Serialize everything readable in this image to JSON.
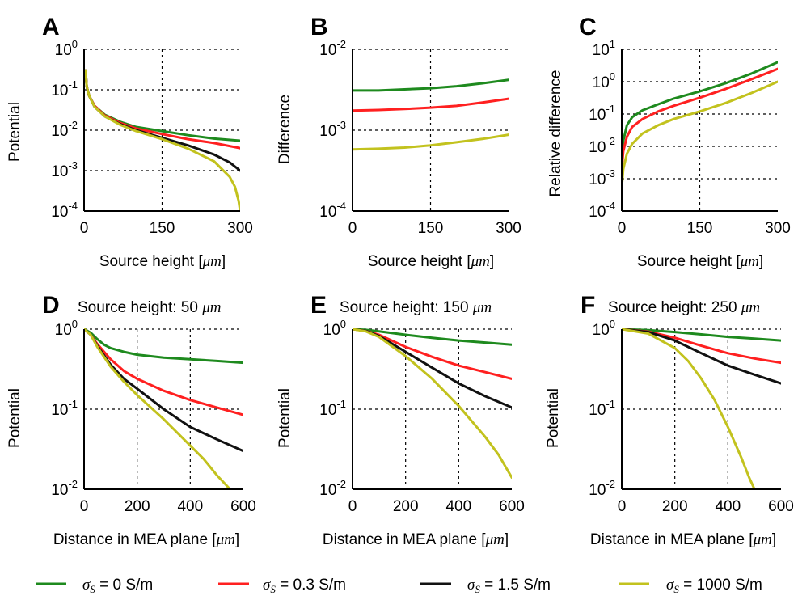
{
  "colors": {
    "green": "#1e8a1e",
    "red": "#ff2020",
    "black": "#111111",
    "yellow": "#c2c21e"
  },
  "legend": [
    {
      "symbol": "σ",
      "subscript": "S",
      "text": " = 0 S/m",
      "color": "#1e8a1e"
    },
    {
      "symbol": "σ",
      "subscript": "S",
      "text": " = 0.3 S/m",
      "color": "#ff2020"
    },
    {
      "symbol": "σ",
      "subscript": "S",
      "text": " = 1.5 S/m",
      "color": "#111111"
    },
    {
      "symbol": "σ",
      "subscript": "S",
      "text": " = 1000 S/m",
      "color": "#c2c21e"
    }
  ],
  "chart_data": [
    {
      "panel": "A",
      "type": "line",
      "log_y": true,
      "grid": true,
      "title": "",
      "ylabel": "Potential",
      "xlabel": "Source height [",
      "xlabel_unit": "μm",
      "xlabel_end": "]",
      "xlim": [
        0,
        300
      ],
      "ylim_exp": [
        -4,
        0
      ],
      "xticks": [
        0,
        150,
        300
      ],
      "xtick_labels": [
        "0",
        "150",
        "300"
      ],
      "yticks_exp": [
        -4,
        -3,
        -2,
        -1,
        0
      ],
      "series": [
        {
          "color": "green",
          "x": [
            3,
            5,
            10,
            20,
            40,
            70,
            100,
            150,
            200,
            250,
            300
          ],
          "y": [
            0.3,
            0.12,
            0.07,
            0.04,
            0.024,
            0.016,
            0.012,
            0.0095,
            0.0075,
            0.0062,
            0.0055
          ]
        },
        {
          "color": "red",
          "x": [
            3,
            5,
            10,
            20,
            40,
            70,
            100,
            150,
            200,
            250,
            300
          ],
          "y": [
            0.3,
            0.12,
            0.07,
            0.04,
            0.023,
            0.015,
            0.011,
            0.008,
            0.006,
            0.0048,
            0.0036
          ]
        },
        {
          "color": "black",
          "x": [
            3,
            5,
            10,
            20,
            40,
            70,
            100,
            150,
            200,
            250,
            280,
            300
          ],
          "y": [
            0.3,
            0.12,
            0.07,
            0.038,
            0.022,
            0.014,
            0.01,
            0.0065,
            0.0042,
            0.0025,
            0.0016,
            0.001
          ]
        },
        {
          "color": "yellow",
          "x": [
            3,
            5,
            10,
            20,
            40,
            70,
            100,
            150,
            200,
            250,
            280,
            290,
            297,
            300
          ],
          "y": [
            0.3,
            0.12,
            0.07,
            0.038,
            0.022,
            0.0135,
            0.0095,
            0.006,
            0.0035,
            0.0017,
            0.0007,
            0.0004,
            0.00018,
            0.0001
          ]
        }
      ]
    },
    {
      "panel": "B",
      "type": "line",
      "log_y": true,
      "grid": true,
      "title": "",
      "ylabel": "Difference",
      "xlabel": "Source height [",
      "xlabel_unit": "μm",
      "xlabel_end": "]",
      "xlim": [
        0,
        300
      ],
      "ylim_exp": [
        -4,
        -2
      ],
      "xticks": [
        0,
        150,
        300
      ],
      "xtick_labels": [
        "0",
        "150",
        "300"
      ],
      "yticks_exp": [
        -4,
        -3,
        -2
      ],
      "series": [
        {
          "color": "green",
          "x": [
            0,
            50,
            100,
            150,
            200,
            250,
            300
          ],
          "y": [
            0.0031,
            0.0031,
            0.0032,
            0.0033,
            0.0035,
            0.0038,
            0.0042
          ]
        },
        {
          "color": "red",
          "x": [
            0,
            50,
            100,
            150,
            200,
            250,
            300
          ],
          "y": [
            0.00175,
            0.00178,
            0.00183,
            0.0019,
            0.002,
            0.0022,
            0.00245
          ]
        },
        {
          "color": "yellow",
          "x": [
            0,
            50,
            100,
            150,
            200,
            250,
            300
          ],
          "y": [
            0.00058,
            0.00059,
            0.00061,
            0.00065,
            0.00071,
            0.00078,
            0.00088
          ]
        }
      ]
    },
    {
      "panel": "C",
      "type": "line",
      "log_y": true,
      "grid": true,
      "title": "",
      "ylabel": "Relative difference",
      "xlabel": "Source height [",
      "xlabel_unit": "μm",
      "xlabel_end": "]",
      "xlim": [
        0,
        300
      ],
      "ylim_exp": [
        -4,
        1
      ],
      "xticks": [
        0,
        150,
        300
      ],
      "xtick_labels": [
        "0",
        "150",
        "300"
      ],
      "yticks_exp": [
        -4,
        -3,
        -2,
        -1,
        0,
        1
      ],
      "series": [
        {
          "color": "green",
          "x": [
            1,
            3,
            10,
            20,
            40,
            70,
            100,
            150,
            200,
            250,
            300
          ],
          "y": [
            0.006,
            0.015,
            0.045,
            0.08,
            0.13,
            0.2,
            0.3,
            0.5,
            0.9,
            1.8,
            4.0
          ]
        },
        {
          "color": "red",
          "x": [
            1,
            3,
            10,
            20,
            40,
            70,
            100,
            150,
            200,
            250,
            300
          ],
          "y": [
            0.003,
            0.007,
            0.02,
            0.04,
            0.07,
            0.12,
            0.18,
            0.32,
            0.6,
            1.2,
            2.5
          ]
        },
        {
          "color": "yellow",
          "x": [
            1,
            3,
            10,
            20,
            40,
            70,
            100,
            150,
            200,
            250,
            300
          ],
          "y": [
            0.0008,
            0.002,
            0.006,
            0.012,
            0.025,
            0.045,
            0.07,
            0.12,
            0.22,
            0.45,
            1.0
          ]
        }
      ]
    },
    {
      "panel": "D",
      "type": "line",
      "log_y": true,
      "grid": true,
      "title": "Source height: 50 ",
      "title_unit": "μm",
      "ylabel": "Potential",
      "xlabel": "Distance in MEA plane [",
      "xlabel_unit": "μm",
      "xlabel_end": "]",
      "xlim": [
        0,
        600
      ],
      "ylim_exp": [
        -2,
        0
      ],
      "xticks": [
        0,
        200,
        400,
        600
      ],
      "xtick_labels": [
        "0",
        "200",
        "400",
        "600"
      ],
      "yticks_exp": [
        -2,
        -1,
        0
      ],
      "series": [
        {
          "color": "green",
          "x": [
            0,
            25,
            50,
            75,
            100,
            150,
            200,
            300,
            400,
            500,
            600
          ],
          "y": [
            1.0,
            0.9,
            0.75,
            0.64,
            0.58,
            0.52,
            0.48,
            0.44,
            0.42,
            0.4,
            0.38
          ]
        },
        {
          "color": "red",
          "x": [
            0,
            25,
            50,
            100,
            150,
            200,
            300,
            400,
            500,
            600
          ],
          "y": [
            1.0,
            0.85,
            0.65,
            0.42,
            0.3,
            0.24,
            0.17,
            0.13,
            0.105,
            0.085
          ]
        },
        {
          "color": "black",
          "x": [
            0,
            25,
            50,
            100,
            150,
            200,
            300,
            400,
            500,
            600
          ],
          "y": [
            1.0,
            0.85,
            0.62,
            0.36,
            0.24,
            0.18,
            0.1,
            0.06,
            0.042,
            0.03
          ]
        },
        {
          "color": "yellow",
          "x": [
            0,
            25,
            50,
            100,
            150,
            200,
            300,
            400,
            450,
            500,
            550
          ],
          "y": [
            1.0,
            0.85,
            0.6,
            0.34,
            0.22,
            0.15,
            0.075,
            0.035,
            0.024,
            0.015,
            0.0095
          ]
        }
      ]
    },
    {
      "panel": "E",
      "type": "line",
      "log_y": true,
      "grid": true,
      "title": "Source height: 150 ",
      "title_unit": "μm",
      "ylabel": "Potential",
      "xlabel": "Distance in MEA plane [",
      "xlabel_unit": "μm",
      "xlabel_end": "]",
      "xlim": [
        0,
        600
      ],
      "ylim_exp": [
        -2,
        0
      ],
      "xticks": [
        0,
        200,
        400,
        600
      ],
      "xtick_labels": [
        "0",
        "200",
        "400",
        "600"
      ],
      "yticks_exp": [
        -2,
        -1,
        0
      ],
      "series": [
        {
          "color": "green",
          "x": [
            0,
            50,
            100,
            200,
            300,
            400,
            500,
            600
          ],
          "y": [
            1.0,
            0.98,
            0.94,
            0.85,
            0.78,
            0.72,
            0.68,
            0.64
          ]
        },
        {
          "color": "red",
          "x": [
            0,
            50,
            100,
            200,
            300,
            400,
            500,
            600
          ],
          "y": [
            1.0,
            0.95,
            0.85,
            0.6,
            0.45,
            0.35,
            0.29,
            0.24
          ]
        },
        {
          "color": "black",
          "x": [
            0,
            50,
            100,
            200,
            300,
            400,
            500,
            600
          ],
          "y": [
            1.0,
            0.95,
            0.82,
            0.52,
            0.33,
            0.21,
            0.145,
            0.105
          ]
        },
        {
          "color": "yellow",
          "x": [
            0,
            50,
            100,
            200,
            300,
            400,
            500,
            550,
            600
          ],
          "y": [
            1.0,
            0.94,
            0.8,
            0.46,
            0.24,
            0.11,
            0.045,
            0.027,
            0.014
          ]
        }
      ]
    },
    {
      "panel": "F",
      "type": "line",
      "log_y": true,
      "grid": true,
      "title": "Source height: 250 ",
      "title_unit": "μm",
      "ylabel": "Potential",
      "xlabel": "Distance in MEA plane [",
      "xlabel_unit": "μm",
      "xlabel_end": "]",
      "xlim": [
        0,
        600
      ],
      "ylim_exp": [
        -2,
        0
      ],
      "xticks": [
        0,
        200,
        400,
        600
      ],
      "xtick_labels": [
        "0",
        "200",
        "400",
        "600"
      ],
      "yticks_exp": [
        -2,
        -1,
        0
      ],
      "series": [
        {
          "color": "green",
          "x": [
            0,
            100,
            200,
            300,
            400,
            500,
            600
          ],
          "y": [
            1.0,
            0.97,
            0.92,
            0.86,
            0.8,
            0.76,
            0.72
          ]
        },
        {
          "color": "red",
          "x": [
            0,
            100,
            200,
            300,
            400,
            500,
            600
          ],
          "y": [
            1.0,
            0.93,
            0.78,
            0.62,
            0.5,
            0.43,
            0.38
          ]
        },
        {
          "color": "black",
          "x": [
            0,
            100,
            200,
            300,
            400,
            500,
            600
          ],
          "y": [
            1.0,
            0.92,
            0.72,
            0.5,
            0.35,
            0.27,
            0.21
          ]
        },
        {
          "color": "yellow",
          "x": [
            0,
            100,
            200,
            250,
            300,
            350,
            400,
            450,
            480,
            500
          ],
          "y": [
            1.0,
            0.88,
            0.58,
            0.4,
            0.24,
            0.13,
            0.06,
            0.025,
            0.014,
            0.01
          ]
        }
      ]
    }
  ]
}
